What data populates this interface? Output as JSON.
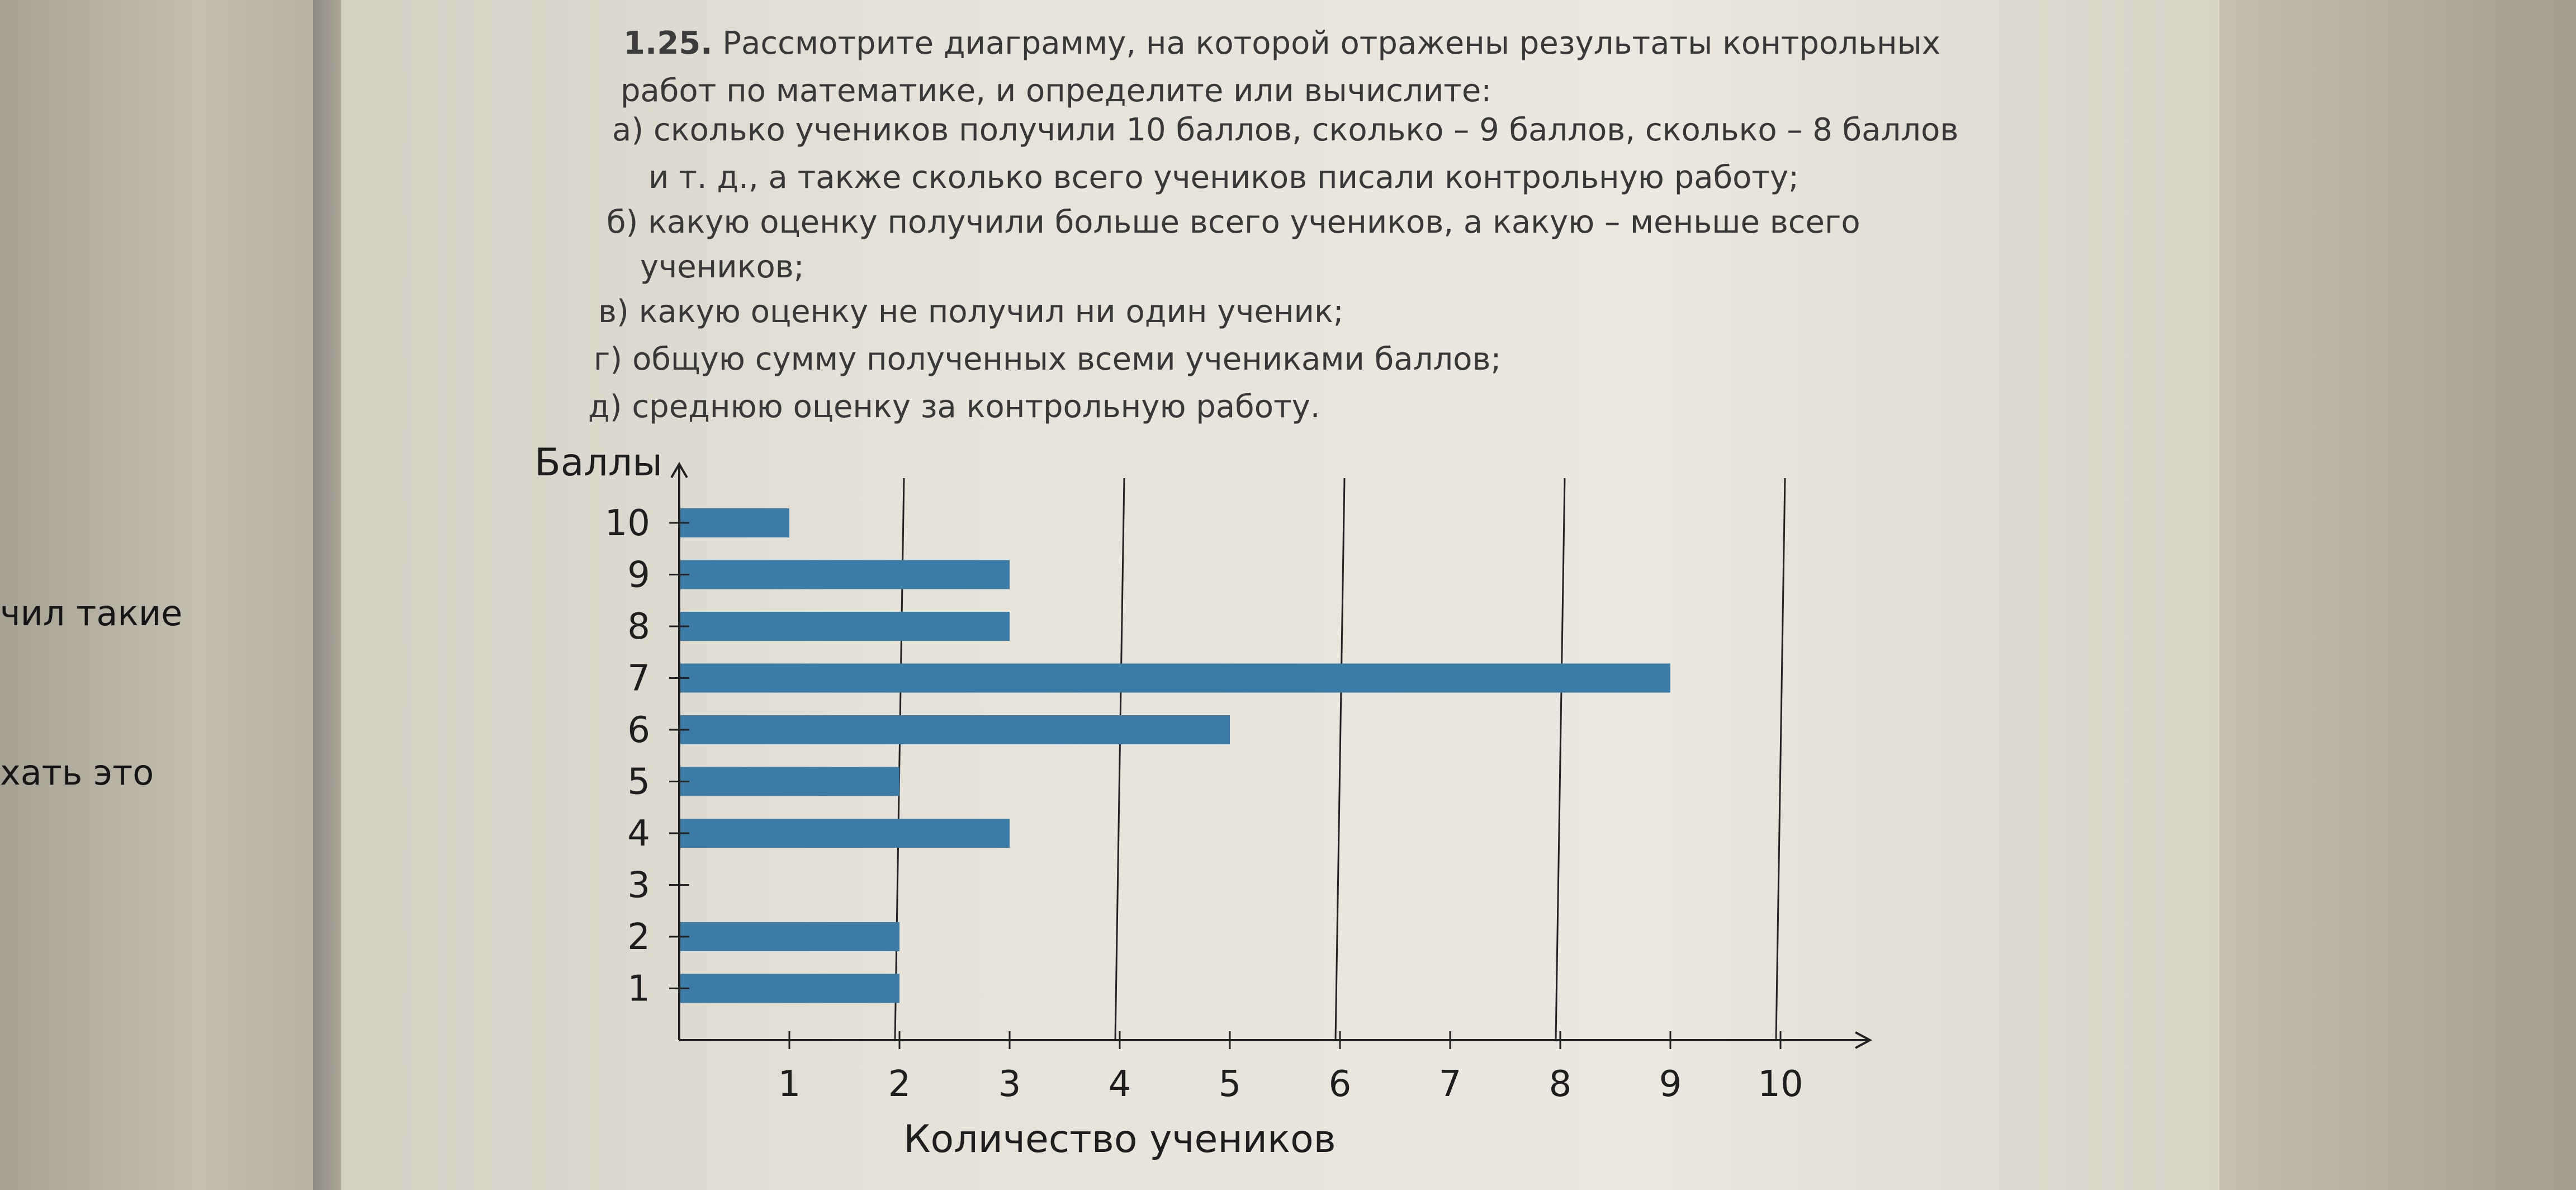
{
  "left_page": {
    "line_1": "чил такие",
    "line_2": "хать это"
  },
  "task": {
    "number": "1.25.",
    "intro_1": "Рассмотрите диаграмму, на которой отражены результаты контрольных",
    "intro_2": "работ по математике, и определите или вычислите:",
    "item_a_1": "а) сколько учеников получили 10 баллов, сколько – 9 баллов, сколько – 8 баллов",
    "item_a_2": "и т. д., а также сколько всего учеников писали контрольную работу;",
    "item_b_1": "б) какую оценку получили больше всего учеников, а какую – меньше всего",
    "item_b_2": "учеников;",
    "item_c": "в) какую оценку не получил ни один ученик;",
    "item_d": "г) общую сумму полученных всеми учениками баллов;",
    "item_e": "д) среднюю оценку за контрольную работу."
  },
  "chart_data": {
    "type": "bar",
    "orientation": "horizontal",
    "categories": [
      "1",
      "2",
      "3",
      "4",
      "5",
      "6",
      "7",
      "8",
      "9",
      "10"
    ],
    "values": [
      2,
      2,
      0,
      3,
      2,
      5,
      9,
      3,
      3,
      1
    ],
    "xlabel": "Количество учеников",
    "ylabel": "Баллы",
    "xticks": [
      "1",
      "2",
      "3",
      "4",
      "5",
      "6",
      "7",
      "8",
      "9",
      "10"
    ],
    "xlim": [
      0,
      10
    ],
    "ylim": [
      0,
      10
    ],
    "grid": "vertical lines at 2, 4, 6, 8, 10",
    "bar_color": "#3a7ca6"
  }
}
